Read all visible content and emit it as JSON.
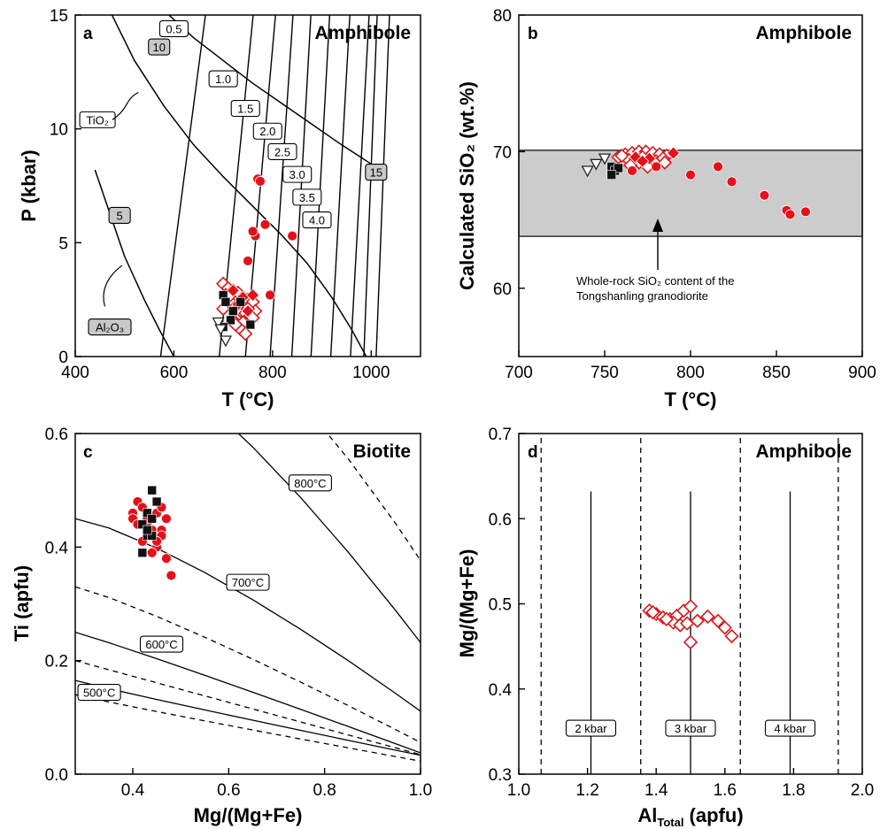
{
  "chart_data": [
    {
      "panel": "a",
      "type": "scatter",
      "title": "Amphibole",
      "xlabel": "T (°C)",
      "ylabel": "P (kbar)",
      "xlim": [
        400,
        1100
      ],
      "ylim": [
        0,
        15
      ],
      "xticks": [
        400,
        600,
        800,
        1000
      ],
      "yticks": [
        0,
        5,
        10,
        15
      ],
      "isobar_labels": [
        "0.5",
        "1.0",
        "1.5",
        "2.0",
        "2.5",
        "3.0",
        "3.5",
        "4.0"
      ],
      "contour_labels": [
        "10",
        "15",
        "5"
      ],
      "oxide_labels": {
        "tio2": "TiO₂",
        "al2o3": "Al₂O₃"
      },
      "series": [
        {
          "marker": "diamond-open-red",
          "x": [
            700,
            710,
            720,
            730,
            740,
            750,
            760,
            705,
            715,
            725,
            735,
            745,
            755,
            765,
            700,
            720,
            740,
            760,
            710,
            730,
            750,
            735,
            745,
            725
          ],
          "y": [
            3.2,
            3.0,
            2.9,
            2.8,
            2.6,
            2.5,
            2.4,
            2.7,
            2.4,
            2.2,
            2.0,
            1.9,
            1.8,
            2.0,
            2.1,
            1.6,
            1.5,
            1.7,
            2.6,
            2.3,
            2.1,
            1.2,
            1.0,
            1.4
          ]
        },
        {
          "marker": "diamond-filled-red",
          "x": [
            720,
            740,
            760,
            730,
            750
          ],
          "y": [
            2.9,
            2.6,
            2.7,
            2.3,
            2.0
          ]
        },
        {
          "marker": "circle-filled-red",
          "x": [
            770,
            775,
            785,
            765,
            760,
            750,
            840,
            795
          ],
          "y": [
            7.8,
            7.7,
            5.8,
            5.3,
            5.5,
            4.2,
            5.3,
            2.7
          ]
        },
        {
          "marker": "square-filled-black",
          "x": [
            700,
            705,
            720,
            715,
            735,
            755,
            700
          ],
          "y": [
            2.7,
            2.4,
            2.0,
            1.6,
            2.4,
            1.4,
            1.3
          ]
        },
        {
          "marker": "triangle-down-open",
          "x": [
            690,
            695,
            705
          ],
          "y": [
            1.5,
            1.2,
            0.7
          ]
        }
      ]
    },
    {
      "panel": "b",
      "type": "scatter",
      "title": "Amphibole",
      "xlabel": "T (°C)",
      "ylabel": "Calculated SiO₂ (wt.%)",
      "xlim": [
        700,
        900
      ],
      "ylim": [
        55,
        80
      ],
      "xticks": [
        700,
        750,
        800,
        850,
        900
      ],
      "yticks": [
        60,
        70,
        80
      ],
      "band": {
        "ymin": 63.8,
        "ymax": 70.1
      },
      "annotation": [
        "Whole-rock SiO₂ content of the",
        "Tongshanling granodiorite"
      ],
      "series": [
        {
          "marker": "diamond-open-red",
          "x": [
            758,
            762,
            766,
            770,
            774,
            778,
            782,
            786,
            764,
            768,
            772,
            776,
            780,
            784,
            760,
            770,
            780,
            775,
            765,
            785
          ],
          "y": [
            69.6,
            69.8,
            69.9,
            70.0,
            70.0,
            69.9,
            69.8,
            69.7,
            69.4,
            69.5,
            69.6,
            69.4,
            69.3,
            69.5,
            69.7,
            69.2,
            69.1,
            68.9,
            69.0,
            69.2
          ]
        },
        {
          "marker": "diamond-filled-red",
          "x": [
            768,
            776,
            790,
            772
          ],
          "y": [
            69.6,
            69.5,
            69.9,
            69.3
          ]
        },
        {
          "marker": "circle-filled-red",
          "x": [
            766,
            780,
            800,
            816,
            824,
            843,
            856,
            858,
            867
          ],
          "y": [
            68.6,
            68.9,
            68.3,
            68.9,
            67.8,
            66.8,
            65.7,
            65.4,
            65.6
          ]
        },
        {
          "marker": "square-filled-black",
          "x": [
            754,
            756,
            758,
            754
          ],
          "y": [
            68.9,
            68.6,
            68.8,
            68.3
          ]
        },
        {
          "marker": "triangle-down-open",
          "x": [
            740,
            745,
            750
          ],
          "y": [
            68.6,
            69.1,
            69.5
          ]
        }
      ]
    },
    {
      "panel": "c",
      "type": "scatter",
      "title": "Biotite",
      "xlabel": "Mg/(Mg+Fe)",
      "ylabel": "Ti (apfu)",
      "xlim": [
        0.28,
        1.0
      ],
      "ylim": [
        0.0,
        0.6
      ],
      "xticks": [
        0.4,
        0.6,
        0.8,
        1.0
      ],
      "yticks": [
        0.0,
        0.2,
        0.4,
        0.6
      ],
      "xtick_labels": [
        "0.4",
        "0.6",
        "0.8",
        "1.0"
      ],
      "ytick_labels": [
        "0.0",
        "0.2",
        "0.4",
        "0.6"
      ],
      "isotherm_labels": [
        "800°C",
        "700°C",
        "600°C",
        "500°C"
      ],
      "series": [
        {
          "marker": "circle-filled-red",
          "x": [
            0.4,
            0.41,
            0.42,
            0.4,
            0.43,
            0.45,
            0.46,
            0.47,
            0.44,
            0.41,
            0.43,
            0.46,
            0.45,
            0.48,
            0.42,
            0.44,
            0.47,
            0.43,
            0.46,
            0.45
          ],
          "y": [
            0.46,
            0.48,
            0.47,
            0.45,
            0.44,
            0.46,
            0.47,
            0.45,
            0.43,
            0.44,
            0.42,
            0.43,
            0.4,
            0.35,
            0.41,
            0.39,
            0.38,
            0.45,
            0.42,
            0.41
          ]
        },
        {
          "marker": "square-filled-black",
          "x": [
            0.44,
            0.43,
            0.42,
            0.44,
            0.43,
            0.45,
            0.42,
            0.44,
            0.43
          ],
          "y": [
            0.5,
            0.46,
            0.44,
            0.45,
            0.42,
            0.48,
            0.39,
            0.42,
            0.43
          ]
        }
      ]
    },
    {
      "panel": "d",
      "type": "scatter",
      "title": "Amphibole",
      "xlabel": "AlTotal (apfu)",
      "xlabel_main": "Al",
      "xlabel_sub": "Total",
      "xlabel_unit": " (apfu)",
      "ylabel": "Mg/(Mg+Fe)",
      "xlim": [
        1.0,
        2.0
      ],
      "ylim": [
        0.3,
        0.7
      ],
      "xticks": [
        1.0,
        1.2,
        1.4,
        1.6,
        1.8,
        2.0
      ],
      "yticks": [
        0.3,
        0.4,
        0.5,
        0.6,
        0.7
      ],
      "xtick_labels": [
        "1.0",
        "1.2",
        "1.4",
        "1.6",
        "1.8",
        "2.0"
      ],
      "ytick_labels": [
        "0.3",
        "0.4",
        "0.5",
        "0.6",
        "0.7"
      ],
      "isobar_labels": [
        "2 kbar",
        "3 kbar",
        "4 kbar"
      ],
      "series": [
        {
          "marker": "diamond-open-red",
          "x": [
            1.38,
            1.4,
            1.42,
            1.44,
            1.46,
            1.48,
            1.5,
            1.52,
            1.55,
            1.58,
            1.6,
            1.62,
            1.45,
            1.47,
            1.49,
            1.5,
            1.39,
            1.43
          ],
          "y": [
            0.492,
            0.488,
            0.484,
            0.482,
            0.486,
            0.492,
            0.497,
            0.48,
            0.485,
            0.48,
            0.472,
            0.462,
            0.478,
            0.475,
            0.477,
            0.455,
            0.49,
            0.482
          ]
        }
      ]
    }
  ]
}
